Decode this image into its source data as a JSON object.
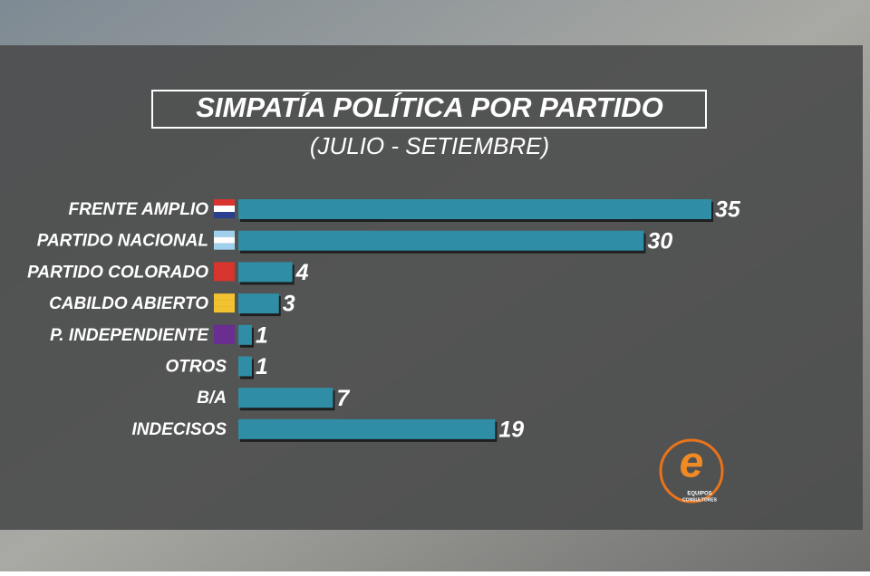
{
  "chart_data": {
    "type": "bar",
    "orientation": "horizontal",
    "title": "SIMPATÍA POLÍTICA POR PARTIDO",
    "subtitle": "(JULIO - SETIEMBRE)",
    "categories": [
      "FRENTE AMPLIO",
      "PARTIDO NACIONAL",
      "PARTIDO COLORADO",
      "CABILDO ABIERTO",
      "P. INDEPENDIENTE",
      "OTROS",
      "B/A",
      "INDECISOS"
    ],
    "values": [
      35,
      30,
      4,
      3,
      1,
      1,
      7,
      19
    ],
    "color": "#2f8ea5",
    "logo": {
      "mark": "e",
      "line1": "EQUIPOS",
      "line2": "CONSULTORES"
    }
  }
}
